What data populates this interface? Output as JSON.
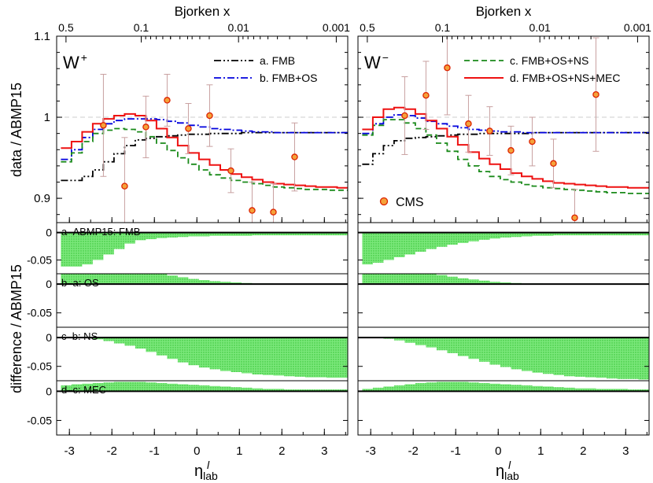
{
  "figure": {
    "ylabel_top": "data / ABMP15",
    "ylabel_bottom": "difference / ABMP15",
    "top_xlabel": "Bjorken  x",
    "bottom_xlabel_main": "η",
    "bottom_xlabel_sup": "l",
    "bottom_xlabel_sub": "lab",
    "top_x_ticks": [
      {
        "eta": -3.08,
        "label": "0.5"
      },
      {
        "eta": -1.31,
        "label": "0.1"
      },
      {
        "eta": 0.98,
        "label": "0.01"
      },
      {
        "eta": 3.28,
        "label": "0.001"
      }
    ],
    "eta_ticks": [
      -3,
      -2,
      -1,
      0,
      1,
      2,
      3
    ],
    "eta_range": [
      -3.3,
      3.55
    ],
    "colors": {
      "fmb": "#000000",
      "os": "#0000dd",
      "ns": "#1a8a1a",
      "mec": "#ee1111",
      "cms_fill": "#f4a23a",
      "cms_edge": "#dd2200",
      "errbar": "#c8a0a0",
      "fill": "#55dd55",
      "refline": "#cccccc"
    }
  },
  "chart_data": [
    {
      "type": "line",
      "panel": "W+",
      "label_main": "W",
      "label_sup": "+",
      "ylim": [
        0.87,
        1.1
      ],
      "y_ticks": [
        0.9,
        1,
        1.1
      ],
      "legend": [
        "a. FMB",
        "b. FMB+OS"
      ],
      "series": [
        {
          "name": "a. FMB",
          "style": "dashdotdot",
          "color": "#000000",
          "values": [
            0.922,
            0.922,
            0.927,
            0.935,
            0.945,
            0.955,
            0.965,
            0.972,
            0.974,
            0.976,
            0.977,
            0.978,
            0.979,
            0.979,
            0.98,
            0.98,
            0.98,
            0.981,
            0.981,
            0.981,
            0.981,
            0.981,
            0.981,
            0.981,
            0.981,
            0.981,
            0.981
          ]
        },
        {
          "name": "b. FMB+OS",
          "style": "dashdot",
          "color": "#0000dd",
          "values": [
            0.948,
            0.96,
            0.975,
            0.985,
            0.992,
            0.996,
            0.998,
            0.998,
            0.998,
            0.997,
            0.995,
            0.993,
            0.99,
            0.988,
            0.986,
            0.985,
            0.984,
            0.983,
            0.982,
            0.982,
            0.981,
            0.981,
            0.981,
            0.981,
            0.981,
            0.981,
            0.981
          ]
        },
        {
          "name": "c. FMB+OS+NS",
          "style": "dashed",
          "color": "#1a8a1a",
          "values": [
            0.945,
            0.956,
            0.97,
            0.98,
            0.984,
            0.986,
            0.985,
            0.982,
            0.976,
            0.968,
            0.959,
            0.95,
            0.942,
            0.935,
            0.929,
            0.925,
            0.922,
            0.92,
            0.918,
            0.916,
            0.914,
            0.913,
            0.912,
            0.911,
            0.911,
            0.91,
            0.91
          ]
        },
        {
          "name": "d. FMB+OS+NS+MEC",
          "style": "solid",
          "color": "#ee1111",
          "values": [
            0.962,
            0.97,
            0.982,
            0.992,
            0.998,
            1.002,
            1.004,
            1.002,
            0.996,
            0.986,
            0.975,
            0.965,
            0.956,
            0.948,
            0.941,
            0.935,
            0.93,
            0.926,
            0.923,
            0.92,
            0.918,
            0.917,
            0.916,
            0.915,
            0.914,
            0.914,
            0.913
          ]
        }
      ],
      "cms": [
        {
          "x": -2.2,
          "y": 0.99,
          "err": 0.063
        },
        {
          "x": -1.7,
          "y": 0.915,
          "err": 0.06
        },
        {
          "x": -1.2,
          "y": 0.988,
          "err": 0.038
        },
        {
          "x": -0.7,
          "y": 1.021,
          "err": 0.032
        },
        {
          "x": -0.2,
          "y": 0.986,
          "err": 0.031
        },
        {
          "x": 0.3,
          "y": 1.002,
          "err": 0.038
        },
        {
          "x": 0.8,
          "y": 0.934,
          "err": 0.027
        },
        {
          "x": 1.3,
          "y": 0.885,
          "err": 0.035
        },
        {
          "x": 1.8,
          "y": 0.883,
          "err": 0.035
        },
        {
          "x": 2.3,
          "y": 0.951,
          "err": 0.042
        }
      ],
      "diffs": [
        {
          "label": "a–ABMP15: FMB",
          "values": [
            -0.062,
            -0.062,
            -0.058,
            -0.05,
            -0.04,
            -0.03,
            -0.02,
            -0.014,
            -0.012,
            -0.01,
            -0.009,
            -0.008,
            -0.007,
            -0.007,
            -0.006,
            -0.006,
            -0.006,
            -0.006,
            -0.005,
            -0.005,
            -0.005,
            -0.005,
            -0.005,
            -0.005,
            -0.005,
            -0.005,
            -0.005
          ]
        },
        {
          "label": "b–a: OS",
          "values": [
            0.024,
            0.03,
            0.037,
            0.04,
            0.039,
            0.036,
            0.031,
            0.026,
            0.022,
            0.018,
            0.015,
            0.012,
            0.009,
            0.007,
            0.005,
            0.004,
            0.003,
            0.002,
            0.001,
            0.001,
            0.0,
            0.0,
            0.0,
            0.0,
            0.0,
            0.0,
            0.0
          ]
        },
        {
          "label": "c–b: NS",
          "values": [
            0.0,
            0.0,
            -0.001,
            -0.003,
            -0.006,
            -0.01,
            -0.014,
            -0.019,
            -0.025,
            -0.031,
            -0.037,
            -0.043,
            -0.048,
            -0.052,
            -0.055,
            -0.058,
            -0.06,
            -0.062,
            -0.064,
            -0.065,
            -0.066,
            -0.067,
            -0.068,
            -0.069,
            -0.069,
            -0.07,
            -0.07
          ]
        },
        {
          "label": "d–c: MEC",
          "values": [
            0.01,
            0.012,
            0.013,
            0.014,
            0.015,
            0.016,
            0.016,
            0.016,
            0.015,
            0.014,
            0.013,
            0.012,
            0.011,
            0.01,
            0.009,
            0.008,
            0.007,
            0.006,
            0.005,
            0.004,
            0.004,
            0.003,
            0.003,
            0.003,
            0.003,
            0.003,
            0.003
          ]
        }
      ]
    },
    {
      "type": "line",
      "panel": "W-",
      "label_main": "W",
      "label_sup": "−",
      "ylim": [
        0.87,
        1.1
      ],
      "y_ticks": [
        0.9,
        1,
        1.1
      ],
      "legend": [
        "c. FMB+OS+NS",
        "d. FMB+OS+NS+MEC"
      ],
      "cms_label": "CMS",
      "series": [
        {
          "name": "a. FMB",
          "style": "dashdotdot",
          "color": "#000000",
          "values": [
            0.942,
            0.955,
            0.965,
            0.971,
            0.974,
            0.975,
            0.976,
            0.977,
            0.978,
            0.979,
            0.979,
            0.98,
            0.98,
            0.98,
            0.98,
            0.98,
            0.981,
            0.981,
            0.981,
            0.981,
            0.981,
            0.981,
            0.981,
            0.981,
            0.981,
            0.981,
            0.981
          ]
        },
        {
          "name": "b. FMB+OS",
          "style": "dashdot",
          "color": "#0000dd",
          "values": [
            0.98,
            0.992,
            1.0,
            1.003,
            1.002,
            0.999,
            0.995,
            0.992,
            0.989,
            0.987,
            0.985,
            0.984,
            0.983,
            0.982,
            0.982,
            0.981,
            0.981,
            0.981,
            0.981,
            0.981,
            0.981,
            0.981,
            0.981,
            0.981,
            0.981,
            0.981,
            0.981
          ]
        },
        {
          "name": "c. FMB+OS+NS",
          "style": "dashed",
          "color": "#1a8a1a",
          "values": [
            0.978,
            0.99,
            0.997,
            0.997,
            0.993,
            0.986,
            0.978,
            0.968,
            0.958,
            0.948,
            0.94,
            0.933,
            0.927,
            0.923,
            0.92,
            0.917,
            0.915,
            0.913,
            0.912,
            0.911,
            0.91,
            0.909,
            0.908,
            0.907,
            0.907,
            0.906,
            0.906
          ]
        },
        {
          "name": "d. FMB+OS+NS+MEC",
          "style": "solid",
          "color": "#ee1111",
          "values": [
            0.985,
            1.0,
            1.01,
            1.012,
            1.01,
            1.004,
            0.996,
            0.986,
            0.976,
            0.966,
            0.957,
            0.949,
            0.942,
            0.936,
            0.931,
            0.927,
            0.924,
            0.921,
            0.919,
            0.918,
            0.917,
            0.916,
            0.915,
            0.914,
            0.914,
            0.913,
            0.913
          ]
        }
      ],
      "cms": [
        {
          "x": -2.2,
          "y": 1.002,
          "err": 0.048
        },
        {
          "x": -1.7,
          "y": 1.027,
          "err": 0.042
        },
        {
          "x": -1.2,
          "y": 1.061,
          "err": 0.058
        },
        {
          "x": -0.7,
          "y": 0.992,
          "err": 0.035
        },
        {
          "x": -0.2,
          "y": 0.983,
          "err": 0.03
        },
        {
          "x": 0.3,
          "y": 0.959,
          "err": 0.03
        },
        {
          "x": 0.8,
          "y": 0.97,
          "err": 0.03
        },
        {
          "x": 1.3,
          "y": 0.943,
          "err": 0.03
        },
        {
          "x": 1.8,
          "y": 0.876,
          "err": 0.035
        },
        {
          "x": 2.3,
          "y": 1.028,
          "err": 0.07
        }
      ],
      "diffs": [
        {
          "label": "",
          "values": [
            -0.058,
            -0.055,
            -0.05,
            -0.045,
            -0.04,
            -0.035,
            -0.03,
            -0.026,
            -0.022,
            -0.019,
            -0.016,
            -0.013,
            -0.011,
            -0.009,
            -0.008,
            -0.007,
            -0.006,
            -0.006,
            -0.005,
            -0.005,
            -0.005,
            -0.005,
            -0.005,
            -0.005,
            -0.005,
            -0.005,
            -0.005
          ]
        },
        {
          "label": "",
          "values": [
            0.03,
            0.033,
            0.034,
            0.031,
            0.028,
            0.024,
            0.02,
            0.016,
            0.013,
            0.01,
            0.008,
            0.006,
            0.004,
            0.003,
            0.002,
            0.001,
            0.001,
            0.0,
            0.0,
            0.0,
            0.0,
            0.0,
            0.0,
            0.0,
            0.0,
            0.0,
            0.0
          ]
        },
        {
          "label": "",
          "values": [
            0.0,
            0.0,
            -0.002,
            -0.005,
            -0.009,
            -0.013,
            -0.017,
            -0.022,
            -0.027,
            -0.032,
            -0.037,
            -0.042,
            -0.047,
            -0.051,
            -0.055,
            -0.058,
            -0.061,
            -0.063,
            -0.065,
            -0.067,
            -0.068,
            -0.069,
            -0.07,
            -0.071,
            -0.072,
            -0.072,
            -0.073
          ]
        },
        {
          "label": "",
          "values": [
            0.004,
            0.006,
            0.008,
            0.01,
            0.012,
            0.014,
            0.015,
            0.016,
            0.016,
            0.016,
            0.015,
            0.014,
            0.013,
            0.012,
            0.011,
            0.01,
            0.009,
            0.008,
            0.007,
            0.006,
            0.005,
            0.005,
            0.004,
            0.004,
            0.004,
            0.003,
            0.003
          ]
        }
      ]
    }
  ],
  "diff_axis": {
    "ylim": [
      -0.075,
      0.018
    ],
    "y_ticks": [
      0,
      -0.05
    ],
    "y_tick_labels": [
      "0",
      "-0.05"
    ]
  }
}
